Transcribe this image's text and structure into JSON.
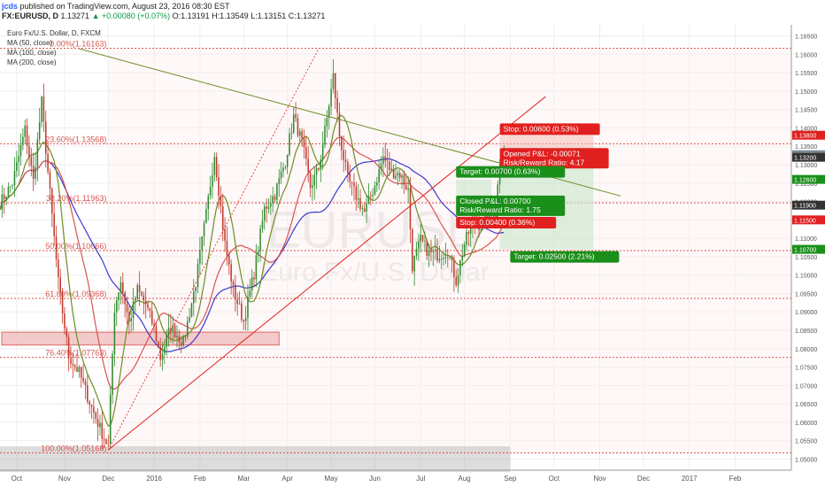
{
  "header": {
    "author": "jcds",
    "published_text": "published on TradingView.com, August 23, 2016 08:30 EST",
    "symbol": "FX:EURUSD, D",
    "last": "1.13271",
    "change": "▲ +0.00080 (+0.07%)",
    "o_label": "O:",
    "o": "1.13191",
    "h_label": "H:",
    "h": "1.13549",
    "l_label": "L:",
    "l": "1.13151",
    "c_label": "C:",
    "c": "1.13271"
  },
  "legend": {
    "title": "Euro Fx/U.S. Dollar, D, FXCM",
    "ma50": "MA (50, close)",
    "ma100": "MA (100, close)",
    "ma200": "MA (200, close)"
  },
  "watermark": {
    "ticker": "EURUSD",
    "name": "Euro Fx/U.S. Dollar"
  },
  "colors": {
    "bull": "#2d8a2d",
    "bear": "#c0392b",
    "ma50": "#6b8e23",
    "ma100": "#d9534f",
    "ma200": "#3a3acf",
    "fib": "#d9534f",
    "target": "#1a8f1a",
    "stop": "#e0201f"
  },
  "chart_data": {
    "type": "candlestick",
    "ylim": [
      1.047,
      1.168
    ],
    "xlim": [
      0,
      380
    ],
    "x_ticks": [
      {
        "label": "Oct",
        "x": 8
      },
      {
        "label": "Nov",
        "x": 31
      },
      {
        "label": "Dec",
        "x": 52
      },
      {
        "label": "2016",
        "x": 74
      },
      {
        "label": "Feb",
        "x": 96
      },
      {
        "label": "Mar",
        "x": 117
      },
      {
        "label": "Apr",
        "x": 138
      },
      {
        "label": "May",
        "x": 159
      },
      {
        "label": "Jun",
        "x": 180
      },
      {
        "label": "Jul",
        "x": 202
      },
      {
        "label": "Aug",
        "x": 223
      },
      {
        "label": "Sep",
        "x": 245
      },
      {
        "label": "Oct",
        "x": 266
      },
      {
        "label": "Nov",
        "x": 288
      },
      {
        "label": "Dec",
        "x": 309
      },
      {
        "label": "2017",
        "x": 331
      },
      {
        "label": "Feb",
        "x": 353
      }
    ],
    "y_ticks": [
      "1.16500",
      "1.16000",
      "1.15500",
      "1.15000",
      "1.14500",
      "1.14000",
      "1.13500",
      "1.13000",
      "1.12500",
      "1.12000",
      "1.11500",
      "1.11000",
      "1.10500",
      "1.10000",
      "1.09500",
      "1.09000",
      "1.08500",
      "1.08000",
      "1.07500",
      "1.07000",
      "1.06500",
      "1.06000",
      "1.05500",
      "1.05000"
    ],
    "price_tags": [
      {
        "value": 1.138,
        "label": "1.13800",
        "color": "#e0201f"
      },
      {
        "value": 1.13271,
        "label": "1.13271",
        "color": "#7b8c95"
      },
      {
        "value": 1.132,
        "label": "1.13200",
        "color": "#333333"
      },
      {
        "value": 1.126,
        "label": "1.12600",
        "color": "#1a8f1a"
      },
      {
        "value": 1.119,
        "label": "1.11900",
        "color": "#333333"
      },
      {
        "value": 1.115,
        "label": "1.11500",
        "color": "#e0201f"
      },
      {
        "value": 1.107,
        "label": "1.10700",
        "color": "#1a8f1a"
      }
    ],
    "fib_levels": [
      {
        "label": "0.00%(1.16163)",
        "value": 1.16163
      },
      {
        "label": "23.60%(1.13568)",
        "value": 1.13568
      },
      {
        "label": "38.20%(1.11963)",
        "value": 1.11963
      },
      {
        "label": "50.00%(1.10666)",
        "value": 1.10666
      },
      {
        "label": "61.80%(1.09368)",
        "value": 1.09368
      },
      {
        "label": "76.40%(1.07763)",
        "value": 1.07763
      },
      {
        "label": "100.00%(1.05168)",
        "value": 1.05168
      }
    ],
    "anchors": [
      {
        "x": 0,
        "v": 1.1195
      },
      {
        "x": 6,
        "v": 1.125
      },
      {
        "x": 12,
        "v": 1.1395
      },
      {
        "x": 16,
        "v": 1.1255
      },
      {
        "x": 20,
        "v": 1.147
      },
      {
        "x": 23,
        "v": 1.128
      },
      {
        "x": 28,
        "v": 1.098
      },
      {
        "x": 33,
        "v": 1.078
      },
      {
        "x": 38,
        "v": 1.0735
      },
      {
        "x": 44,
        "v": 1.064
      },
      {
        "x": 49,
        "v": 1.057
      },
      {
        "x": 52,
        "v": 1.0535
      },
      {
        "x": 55,
        "v": 1.091
      },
      {
        "x": 58,
        "v": 1.0985
      },
      {
        "x": 62,
        "v": 1.087
      },
      {
        "x": 66,
        "v": 1.096
      },
      {
        "x": 70,
        "v": 1.092
      },
      {
        "x": 74,
        "v": 1.0855
      },
      {
        "x": 77,
        "v": 1.0775
      },
      {
        "x": 82,
        "v": 1.086
      },
      {
        "x": 88,
        "v": 1.0815
      },
      {
        "x": 94,
        "v": 1.098
      },
      {
        "x": 99,
        "v": 1.1165
      },
      {
        "x": 103,
        "v": 1.133
      },
      {
        "x": 108,
        "v": 1.1085
      },
      {
        "x": 112,
        "v": 1.096
      },
      {
        "x": 117,
        "v": 1.0875
      },
      {
        "x": 122,
        "v": 1.1005
      },
      {
        "x": 127,
        "v": 1.118
      },
      {
        "x": 132,
        "v": 1.122
      },
      {
        "x": 137,
        "v": 1.131
      },
      {
        "x": 141,
        "v": 1.143
      },
      {
        "x": 145,
        "v": 1.136
      },
      {
        "x": 149,
        "v": 1.124
      },
      {
        "x": 153,
        "v": 1.129
      },
      {
        "x": 157,
        "v": 1.1425
      },
      {
        "x": 160,
        "v": 1.154
      },
      {
        "x": 163,
        "v": 1.138
      },
      {
        "x": 167,
        "v": 1.126
      },
      {
        "x": 171,
        "v": 1.1215
      },
      {
        "x": 175,
        "v": 1.117
      },
      {
        "x": 180,
        "v": 1.1245
      },
      {
        "x": 184,
        "v": 1.132
      },
      {
        "x": 188,
        "v": 1.128
      },
      {
        "x": 192,
        "v": 1.1275
      },
      {
        "x": 196,
        "v": 1.123
      },
      {
        "x": 198,
        "v": 1.1025
      },
      {
        "x": 202,
        "v": 1.1095
      },
      {
        "x": 206,
        "v": 1.106
      },
      {
        "x": 210,
        "v": 1.1055
      },
      {
        "x": 215,
        "v": 1.1065
      },
      {
        "x": 219,
        "v": 1.0985
      },
      {
        "x": 223,
        "v": 1.1085
      },
      {
        "x": 227,
        "v": 1.1145
      },
      {
        "x": 231,
        "v": 1.1135
      },
      {
        "x": 235,
        "v": 1.1165
      },
      {
        "x": 238,
        "v": 1.1175
      },
      {
        "x": 240,
        "v": 1.131
      },
      {
        "x": 242,
        "v": 1.1325
      }
    ]
  },
  "annotations": {
    "stop_top": "Stop: 0.00600 (0.53%)",
    "opened_pl": "Opened P&L: -0.00071",
    "rr_top": "Risk/Reward Ratio: 4.17",
    "target_top": "Target: 0.00700 (0.63%)",
    "closed_pl": "Closed P&L: 0.00700",
    "rr_mid": "Risk/Reward Ratio: 1.75",
    "stop_mid": "Stop: 0.00400 (0.36%)",
    "target_bottom": "Target: 0.02500 (2.21%)"
  }
}
